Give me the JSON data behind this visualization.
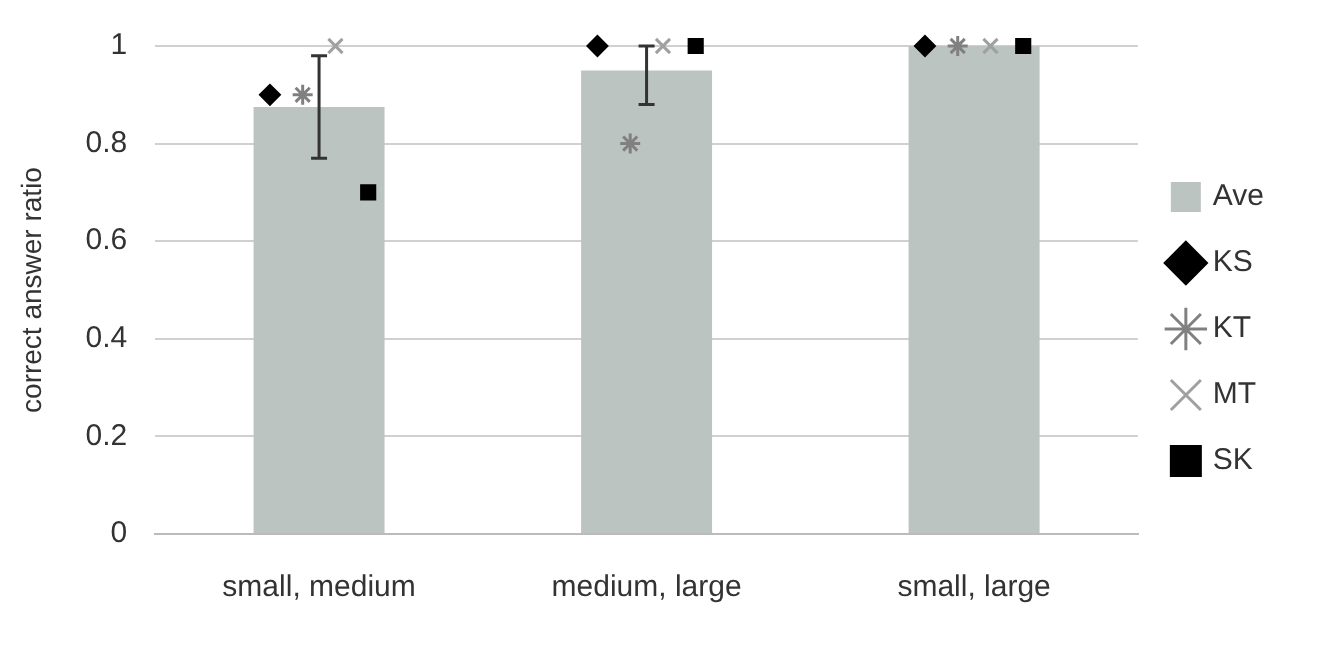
{
  "chart_data": {
    "type": "bar",
    "ylabel": "correct answer ratio",
    "categories": [
      "small, medium",
      "medium, large",
      "small, large"
    ],
    "ylim": [
      0,
      1
    ],
    "yticks": [
      0,
      0.2,
      0.4,
      0.6,
      0.8,
      1
    ],
    "grid": "y",
    "legend": "right",
    "series": [
      {
        "name": "Ave",
        "color": "#bcc4c1",
        "values": [
          0.875,
          0.95,
          1.0
        ],
        "errors": [
          [
            0.77,
            0.98
          ],
          [
            0.88,
            1.0
          ],
          null
        ]
      },
      {
        "name": "KS",
        "type": "scatter",
        "marker": "diamond",
        "color": "#000000",
        "values": [
          0.9,
          1,
          1
        ]
      },
      {
        "name": "KT",
        "type": "scatter",
        "color": "#808080",
        "values": [
          0.9,
          0.8,
          1
        ]
      },
      {
        "name": "MT",
        "type": "scatter",
        "marker": "cross",
        "color": "#a0a0a0",
        "values": [
          1,
          1,
          1
        ]
      },
      {
        "name": "SK",
        "type": "scatter",
        "marker": "square",
        "color": "#000000",
        "values": [
          0.7,
          1,
          1
        ]
      }
    ]
  }
}
